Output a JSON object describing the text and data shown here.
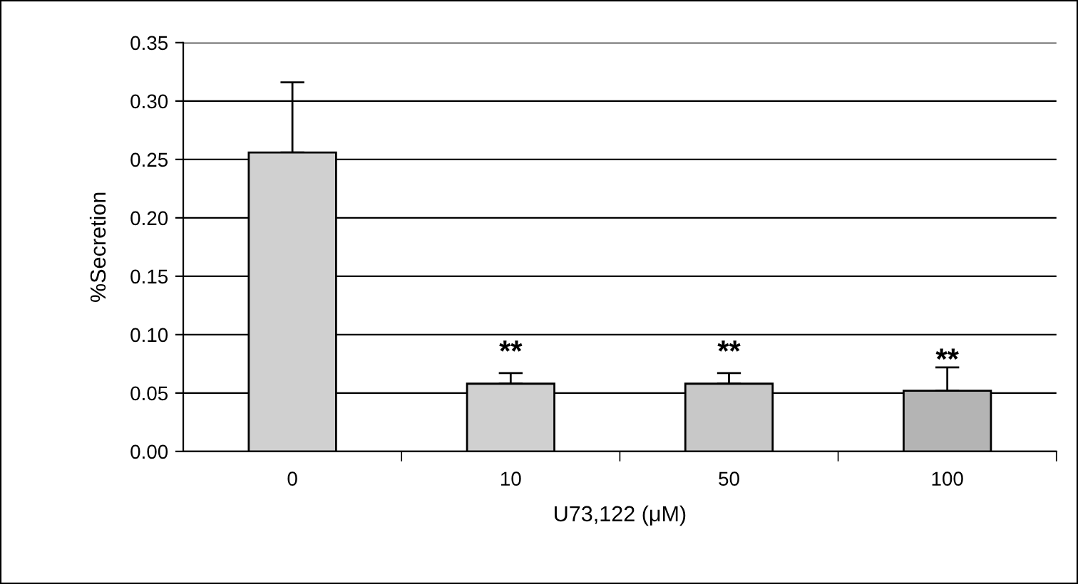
{
  "chart_data": {
    "type": "bar",
    "xlabel": "U73,122 (μM)",
    "ylabel": "%Secretion",
    "categories": [
      "0",
      "10",
      "50",
      "100"
    ],
    "values": [
      0.256,
      0.058,
      0.058,
      0.052
    ],
    "colors": [
      "#d0d0d0",
      "#d0d0d0",
      "#c8c8c8",
      "#b4b4b4"
    ],
    "errors": [
      [
        0.256,
        0.316
      ],
      [
        0.058,
        0.067
      ],
      [
        0.058,
        0.067
      ],
      [
        0.052,
        0.072
      ]
    ],
    "ylim": [
      0,
      0.35
    ],
    "yticks": [
      {
        "value": 0,
        "label": "0.00"
      },
      {
        "value": 0.05,
        "label": "0.05"
      },
      {
        "value": 0.1,
        "label": "0.10"
      },
      {
        "value": 0.15,
        "label": "0.15"
      },
      {
        "value": 0.2,
        "label": "0.20"
      },
      {
        "value": 0.25,
        "label": "0.25"
      },
      {
        "value": 0.3,
        "label": "0.30"
      },
      {
        "value": 0.35,
        "label": "0.35"
      }
    ],
    "grid": "y",
    "annotations": [
      {
        "text": "**",
        "x": "10",
        "y": 0.067
      },
      {
        "text": "**",
        "x": "50",
        "y": 0.067
      },
      {
        "text": "**",
        "x": "100",
        "y": 0.072
      }
    ]
  }
}
